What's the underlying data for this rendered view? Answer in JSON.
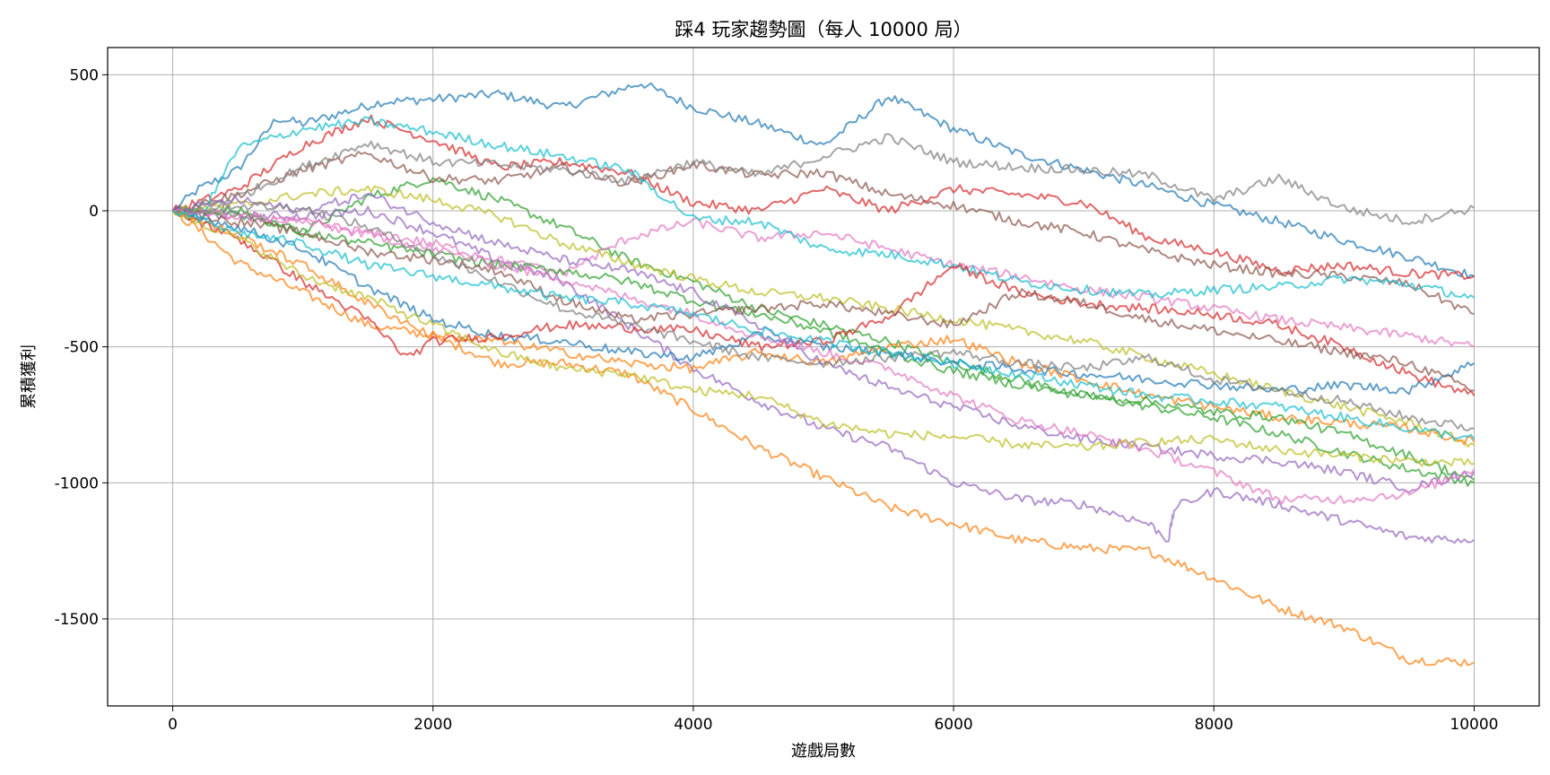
{
  "chart_data": {
    "type": "line",
    "title": "踩4 玩家趨勢圖（每人 10000 局）",
    "xlabel": "遊戲局數",
    "ylabel": "累積獲利",
    "xlim": [
      -500,
      10500
    ],
    "ylim": [
      -1820,
      600
    ],
    "xticks": [
      0,
      2000,
      4000,
      6000,
      8000,
      10000
    ],
    "yticks": [
      500,
      0,
      -500,
      -1000,
      -1500
    ],
    "xtick_labels": [
      "0",
      "2000",
      "4000",
      "6000",
      "8000",
      "10000"
    ],
    "ytick_labels": [
      "500",
      "0",
      "-500",
      "-1000",
      "-1500"
    ],
    "grid": true,
    "line_alpha": 0.7,
    "series": [
      {
        "color": "#1f77b4",
        "x": [
          0,
          200,
          500,
          800,
          1000,
          1600,
          2000,
          2500,
          3000,
          3600,
          4000,
          4500,
          5000,
          5500,
          6000,
          6500,
          7000,
          7500,
          8000,
          8500,
          9000,
          9500,
          10000
        ],
        "values": [
          0,
          80,
          150,
          340,
          320,
          400,
          410,
          430,
          380,
          470,
          380,
          320,
          240,
          420,
          300,
          210,
          150,
          90,
          20,
          -40,
          -110,
          -170,
          -240
        ]
      },
      {
        "color": "#ff7f0e",
        "x": [
          0,
          200,
          500,
          1000,
          1500,
          2000,
          2500,
          3000,
          3500,
          4000,
          4500,
          5000,
          5500,
          6000,
          6500,
          7000,
          7500,
          8000,
          8500,
          9000,
          9500,
          10000
        ],
        "values": [
          0,
          -70,
          -190,
          -300,
          -420,
          -460,
          -560,
          -560,
          -600,
          -730,
          -870,
          -980,
          -1090,
          -1150,
          -1210,
          -1240,
          -1250,
          -1350,
          -1460,
          -1530,
          -1650,
          -1660
        ]
      },
      {
        "color": "#2ca02c",
        "x": [
          0,
          500,
          1000,
          1500,
          2000,
          2500,
          3000,
          3500,
          4000,
          4500,
          5000,
          5500,
          6000,
          6500,
          7000,
          7500,
          8000,
          8500,
          9000,
          9500,
          10000
        ],
        "values": [
          0,
          -10,
          -80,
          50,
          120,
          40,
          -60,
          -180,
          -260,
          -360,
          -420,
          -480,
          -560,
          -620,
          -680,
          -720,
          -760,
          -820,
          -890,
          -950,
          -1000
        ]
      },
      {
        "color": "#d62728",
        "x": [
          0,
          500,
          1000,
          1500,
          2000,
          2500,
          3000,
          3500,
          4000,
          4500,
          5000,
          5500,
          6000,
          6500,
          7000,
          7500,
          8000,
          8500,
          9000,
          9500,
          10000
        ],
        "values": [
          0,
          80,
          240,
          340,
          260,
          160,
          180,
          140,
          30,
          0,
          80,
          0,
          80,
          60,
          30,
          -100,
          -150,
          -220,
          -200,
          -230,
          -240
        ]
      },
      {
        "color": "#9467bd",
        "x": [
          0,
          500,
          1000,
          1500,
          2000,
          2500,
          3000,
          3500,
          4000,
          4500,
          5000,
          5500,
          6000,
          6500,
          7000,
          7500,
          7650,
          7700,
          8000,
          8500,
          9000,
          9500,
          10000
        ],
        "values": [
          0,
          -20,
          -20,
          0,
          -80,
          -180,
          -260,
          -420,
          -580,
          -700,
          -800,
          -870,
          -1000,
          -1060,
          -1080,
          -1150,
          -1210,
          -1090,
          -1030,
          -1080,
          -1140,
          -1200,
          -1210
        ]
      },
      {
        "color": "#8c564b",
        "x": [
          0,
          500,
          1000,
          1500,
          2000,
          2500,
          3000,
          3500,
          4000,
          4500,
          5000,
          5500,
          6000,
          6500,
          7000,
          7500,
          8000,
          8500,
          9000,
          9500,
          10000
        ],
        "values": [
          0,
          60,
          150,
          210,
          120,
          110,
          160,
          100,
          170,
          130,
          140,
          60,
          20,
          -40,
          -80,
          -150,
          -200,
          -230,
          -240,
          -270,
          -380
        ]
      },
      {
        "color": "#e377c2",
        "x": [
          0,
          500,
          1000,
          1500,
          2000,
          2500,
          3000,
          3500,
          4000,
          4500,
          5000,
          5500,
          6000,
          6500,
          7000,
          7500,
          8000,
          8500,
          9000,
          9500,
          10000
        ],
        "values": [
          0,
          -20,
          -40,
          -80,
          -120,
          -180,
          -230,
          -100,
          -40,
          -100,
          -80,
          -140,
          -200,
          -240,
          -290,
          -320,
          -360,
          -400,
          -430,
          -460,
          -500
        ]
      },
      {
        "color": "#7f7f7f",
        "x": [
          0,
          500,
          1000,
          1500,
          2000,
          2500,
          3000,
          3500,
          4000,
          4500,
          5000,
          5500,
          6000,
          6500,
          7000,
          7500,
          8000,
          8500,
          9000,
          9500,
          10000
        ],
        "values": [
          0,
          50,
          160,
          250,
          180,
          170,
          150,
          110,
          180,
          130,
          200,
          270,
          180,
          160,
          150,
          130,
          40,
          120,
          10,
          -40,
          10
        ]
      },
      {
        "color": "#bcbd22",
        "x": [
          0,
          500,
          1000,
          1500,
          2000,
          2500,
          3000,
          3500,
          4000,
          4500,
          5000,
          5500,
          6000,
          6500,
          7000,
          7500,
          8000,
          8500,
          9000,
          9500,
          10000
        ],
        "values": [
          0,
          20,
          60,
          80,
          40,
          -20,
          -120,
          -190,
          -250,
          -300,
          -320,
          -360,
          -400,
          -440,
          -480,
          -540,
          -600,
          -660,
          -720,
          -780,
          -860
        ]
      },
      {
        "color": "#17becf",
        "x": [
          0,
          200,
          500,
          1000,
          1500,
          2000,
          2500,
          3000,
          3500,
          4000,
          4500,
          5000,
          5500,
          6000,
          6500,
          7000,
          7500,
          8000,
          8500,
          9000,
          9500,
          10000
        ],
        "values": [
          0,
          -40,
          230,
          300,
          330,
          290,
          240,
          200,
          150,
          -30,
          -40,
          -140,
          -160,
          -200,
          -260,
          -290,
          -310,
          -290,
          -280,
          -250,
          -270,
          -320
        ]
      },
      {
        "color": "#1f77b4",
        "x": [
          0,
          500,
          1000,
          1500,
          2000,
          2500,
          3000,
          3500,
          4000,
          4500,
          5000,
          5500,
          6000,
          6500,
          7000,
          7500,
          8000,
          8500,
          9000,
          9500,
          10000
        ],
        "values": [
          0,
          -60,
          -140,
          -280,
          -400,
          -460,
          -480,
          -520,
          -540,
          -460,
          -500,
          -520,
          -560,
          -580,
          -600,
          -620,
          -640,
          -660,
          -640,
          -660,
          -560
        ]
      },
      {
        "color": "#ff7f0e",
        "x": [
          0,
          500,
          1000,
          1500,
          2000,
          2500,
          3000,
          3500,
          4000,
          4500,
          5000,
          5500,
          6000,
          6500,
          7000,
          7500,
          8000,
          8500,
          9000,
          9500,
          10000
        ],
        "values": [
          0,
          -90,
          -200,
          -340,
          -460,
          -480,
          -520,
          -560,
          -580,
          -520,
          -560,
          -500,
          -470,
          -560,
          -620,
          -680,
          -720,
          -760,
          -780,
          -800,
          -850
        ]
      },
      {
        "color": "#2ca02c",
        "x": [
          0,
          500,
          1000,
          1500,
          2000,
          2500,
          3000,
          3500,
          4000,
          4500,
          5000,
          5500,
          6000,
          6500,
          7000,
          7500,
          8000,
          8500,
          9000,
          9500,
          10000
        ],
        "values": [
          0,
          0,
          -80,
          -120,
          -160,
          -200,
          -220,
          -260,
          -330,
          -380,
          -440,
          -520,
          -590,
          -640,
          -680,
          -700,
          -740,
          -760,
          -820,
          -900,
          -990
        ]
      },
      {
        "color": "#d62728",
        "x": [
          0,
          500,
          1000,
          1500,
          1800,
          2000,
          2500,
          3000,
          3500,
          4000,
          4500,
          5000,
          5500,
          6000,
          6500,
          7000,
          7500,
          8000,
          8500,
          9000,
          9500,
          10000
        ],
        "values": [
          0,
          -100,
          -260,
          -400,
          -540,
          -480,
          -460,
          -420,
          -430,
          -440,
          -500,
          -480,
          -390,
          -200,
          -300,
          -340,
          -360,
          -380,
          -420,
          -500,
          -600,
          -680
        ]
      },
      {
        "color": "#9467bd",
        "x": [
          0,
          500,
          1000,
          1500,
          2000,
          2500,
          3000,
          3500,
          4000,
          4500,
          5000,
          5500,
          6000,
          6500,
          7000,
          7500,
          8000,
          8500,
          9000,
          9500,
          10000
        ],
        "values": [
          0,
          40,
          0,
          60,
          -40,
          -120,
          -180,
          -220,
          -300,
          -420,
          -560,
          -650,
          -720,
          -790,
          -840,
          -870,
          -900,
          -920,
          -960,
          -1020,
          -960
        ]
      },
      {
        "color": "#8c564b",
        "x": [
          0,
          500,
          1000,
          1500,
          2000,
          2500,
          3000,
          3500,
          4000,
          4500,
          5000,
          5500,
          6000,
          6500,
          7000,
          7500,
          8000,
          8500,
          9000,
          9500,
          10000
        ],
        "values": [
          0,
          -40,
          -80,
          -150,
          -180,
          -220,
          -330,
          -400,
          -380,
          -360,
          -340,
          -380,
          -420,
          -300,
          -340,
          -400,
          -440,
          -480,
          -520,
          -560,
          -660
        ]
      },
      {
        "color": "#e377c2",
        "x": [
          0,
          500,
          1000,
          1500,
          2000,
          2500,
          3000,
          3500,
          4000,
          4500,
          5000,
          5500,
          6000,
          6500,
          7000,
          7500,
          8000,
          8500,
          9000,
          9500,
          10000
        ],
        "values": [
          0,
          -20,
          -40,
          -90,
          -140,
          -200,
          -250,
          -320,
          -380,
          -460,
          -520,
          -580,
          -680,
          -770,
          -820,
          -880,
          -960,
          -1060,
          -1060,
          -1040,
          -950
        ]
      },
      {
        "color": "#7f7f7f",
        "x": [
          0,
          500,
          1000,
          1500,
          2000,
          2500,
          3000,
          3500,
          4000,
          4500,
          5000,
          5500,
          6000,
          6500,
          7000,
          7500,
          8000,
          8500,
          9000,
          9500,
          10000
        ],
        "values": [
          0,
          20,
          10,
          -60,
          -160,
          -260,
          -360,
          -420,
          -480,
          -540,
          -560,
          -540,
          -520,
          -560,
          -580,
          -540,
          -620,
          -660,
          -700,
          -760,
          -800
        ]
      },
      {
        "color": "#bcbd22",
        "x": [
          0,
          500,
          1000,
          1500,
          2000,
          2500,
          3000,
          3500,
          4000,
          4500,
          5000,
          5500,
          6000,
          6500,
          7000,
          7500,
          8000,
          8500,
          9000,
          9500,
          10000
        ],
        "values": [
          0,
          -100,
          -240,
          -320,
          -420,
          -520,
          -580,
          -600,
          -660,
          -680,
          -780,
          -820,
          -830,
          -860,
          -870,
          -850,
          -840,
          -880,
          -900,
          -920,
          -930
        ]
      },
      {
        "color": "#17becf",
        "x": [
          0,
          500,
          1000,
          1500,
          2000,
          2500,
          3000,
          3500,
          4000,
          4500,
          5000,
          5500,
          6000,
          6500,
          7000,
          7500,
          8000,
          8500,
          9000,
          9500,
          10000
        ],
        "values": [
          0,
          -80,
          -120,
          -200,
          -240,
          -280,
          -320,
          -340,
          -380,
          -440,
          -480,
          -520,
          -560,
          -600,
          -640,
          -680,
          -700,
          -720,
          -760,
          -800,
          -840
        ]
      }
    ]
  }
}
